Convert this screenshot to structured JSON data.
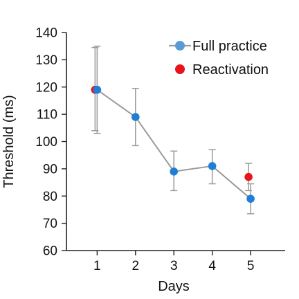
{
  "chart_data": {
    "type": "line",
    "xlabel": "Days",
    "ylabel": "Threshold (ms)",
    "x": [
      1,
      2,
      3,
      4,
      5
    ],
    "xlim": [
      0.2,
      5.9
    ],
    "ylim": [
      60,
      140
    ],
    "xticks": [
      "1",
      "2",
      "3",
      "4",
      "5"
    ],
    "yticks": [
      "60",
      "70",
      "80",
      "90",
      "100",
      "110",
      "120",
      "130",
      "140"
    ],
    "grid": false,
    "legend_position": "top-right",
    "series": [
      {
        "name": "Full practice",
        "color": "#1f7fd6",
        "line_color": "#9a9a9a",
        "marker": "circle",
        "connected": true,
        "x": [
          1,
          2,
          3,
          4,
          5
        ],
        "y": [
          119,
          109,
          89,
          91,
          79
        ],
        "err_low": [
          103,
          98.5,
          82,
          84.5,
          73.5
        ],
        "err_high": [
          135,
          119.5,
          96.5,
          97,
          84.5
        ]
      },
      {
        "name": "Reactivation",
        "color": "#e8131b",
        "marker": "circle",
        "connected": false,
        "x": [
          1,
          5
        ],
        "y": [
          119,
          87
        ],
        "err_low": [
          104,
          82
        ],
        "err_high": [
          134.5,
          92
        ]
      }
    ],
    "legend": [
      {
        "label": "Full practice",
        "color": "#5b9bd5",
        "line_color": "#9a9a9a",
        "style": "line-marker"
      },
      {
        "label": "Reactivation",
        "color": "#e8131b",
        "style": "marker"
      }
    ]
  }
}
